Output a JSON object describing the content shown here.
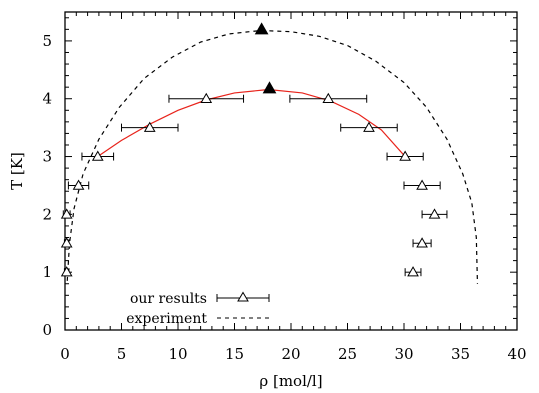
{
  "chart_data": {
    "type": "scatter",
    "xlabel": "ρ [mol/l]",
    "ylabel": "T [K]",
    "xlim": [
      0,
      40
    ],
    "ylim": [
      0,
      5.5
    ],
    "xticks": [
      "0",
      "5",
      "10",
      "15",
      "20",
      "25",
      "30",
      "35",
      "40"
    ],
    "yticks": [
      "0",
      "1",
      "2",
      "3",
      "4",
      "5"
    ],
    "grid": false,
    "legend_position": "bottom-left",
    "legend": [
      "our results",
      "experiment"
    ],
    "series": [
      {
        "name": "our results",
        "marker": "open-triangle",
        "color": "#000000",
        "points": [
          {
            "x": 0.15,
            "y": 1.0,
            "xerr": 0.2
          },
          {
            "x": 0.15,
            "y": 1.5,
            "xerr": 0.2
          },
          {
            "x": 0.15,
            "y": 2.0,
            "xerr": 0.3
          },
          {
            "x": 1.2,
            "y": 2.5,
            "xerr": 0.9
          },
          {
            "x": 2.9,
            "y": 3.0,
            "xerr": 1.4
          },
          {
            "x": 7.5,
            "y": 3.5,
            "xerr": 2.5
          },
          {
            "x": 12.5,
            "y": 4.0,
            "xerr": 3.3
          },
          {
            "x": 23.3,
            "y": 4.0,
            "xerr": 3.4
          },
          {
            "x": 26.9,
            "y": 3.5,
            "xerr": 2.5
          },
          {
            "x": 30.1,
            "y": 3.0,
            "xerr": 1.6
          },
          {
            "x": 31.6,
            "y": 2.5,
            "xerr": 1.6
          },
          {
            "x": 32.7,
            "y": 2.0,
            "xerr": 1.1
          },
          {
            "x": 31.6,
            "y": 1.5,
            "xerr": 0.8
          },
          {
            "x": 30.8,
            "y": 1.0,
            "xerr": 0.7
          }
        ]
      },
      {
        "name": "experiment",
        "style": "dashed",
        "color": "#000000",
        "points": [
          {
            "x": 0.2,
            "y": 0.85
          },
          {
            "x": 0.4,
            "y": 1.5
          },
          {
            "x": 0.8,
            "y": 2.1
          },
          {
            "x": 1.6,
            "y": 2.7
          },
          {
            "x": 3.0,
            "y": 3.3
          },
          {
            "x": 4.8,
            "y": 3.85
          },
          {
            "x": 7.0,
            "y": 4.35
          },
          {
            "x": 9.5,
            "y": 4.72
          },
          {
            "x": 12.0,
            "y": 4.98
          },
          {
            "x": 14.5,
            "y": 5.12
          },
          {
            "x": 17.3,
            "y": 5.18
          },
          {
            "x": 20.0,
            "y": 5.16
          },
          {
            "x": 22.5,
            "y": 5.08
          },
          {
            "x": 25.0,
            "y": 4.92
          },
          {
            "x": 27.5,
            "y": 4.65
          },
          {
            "x": 30.0,
            "y": 4.28
          },
          {
            "x": 32.0,
            "y": 3.85
          },
          {
            "x": 33.8,
            "y": 3.3
          },
          {
            "x": 35.2,
            "y": 2.7
          },
          {
            "x": 36.0,
            "y": 2.2
          },
          {
            "x": 36.4,
            "y": 1.6
          },
          {
            "x": 36.5,
            "y": 0.8
          }
        ]
      },
      {
        "name": "",
        "style": "solid",
        "color": "#e8241c",
        "points": [
          {
            "x": 2.9,
            "y": 3.0
          },
          {
            "x": 5.0,
            "y": 3.28
          },
          {
            "x": 7.5,
            "y": 3.56
          },
          {
            "x": 10.0,
            "y": 3.8
          },
          {
            "x": 12.5,
            "y": 3.98
          },
          {
            "x": 15.0,
            "y": 4.1
          },
          {
            "x": 18.0,
            "y": 4.16
          },
          {
            "x": 21.0,
            "y": 4.1
          },
          {
            "x": 23.5,
            "y": 3.96
          },
          {
            "x": 26.0,
            "y": 3.73
          },
          {
            "x": 28.0,
            "y": 3.46
          },
          {
            "x": 30.1,
            "y": 3.0
          }
        ]
      },
      {
        "name": "",
        "marker": "filled-triangle",
        "color": "#000000",
        "points": [
          {
            "x": 17.4,
            "y": 5.2
          },
          {
            "x": 18.1,
            "y": 4.18
          }
        ]
      }
    ]
  }
}
